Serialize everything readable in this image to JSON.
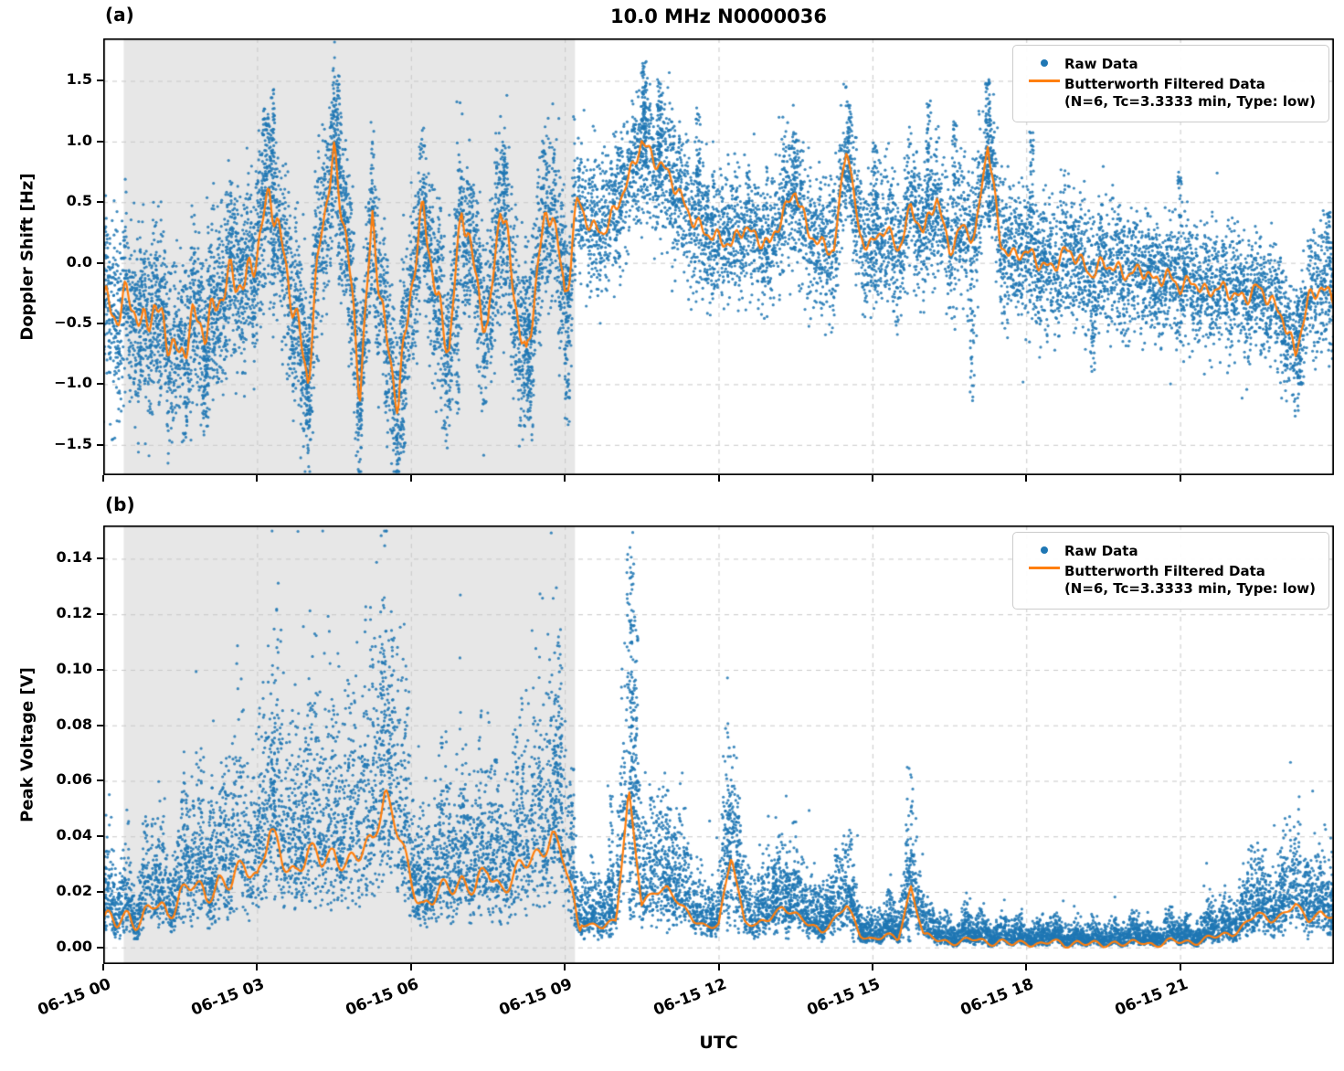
{
  "title": "10.0 MHz N0000036",
  "xlabel": "UTC",
  "panel_labels": {
    "a": "(a)",
    "b": "(b)"
  },
  "legend": {
    "raw_label": "Raw Data",
    "filtered_label_line1": "Butterworth Filtered Data",
    "filtered_label_line2": "(N=6, Tc=3.3333 min, Type: low)"
  },
  "colors": {
    "raw": "#1f77b4",
    "filtered": "#ff7f0e",
    "shaded_region": "#e7e7e7",
    "grid": "#c9c9c9",
    "frame": "#000000"
  },
  "chart_data": [
    {
      "type": "scatter",
      "panel": "a",
      "title": "10.0 MHz N0000036",
      "ylabel": "Doppler Shift [Hz]",
      "xlabel": "UTC",
      "x_unit": "hours since 06-15 00:00 UTC",
      "xlim_hours": [
        0,
        24
      ],
      "ylim": [
        -1.75,
        1.85
      ],
      "ytick_values": [
        -1.5,
        -1.0,
        -0.5,
        0.0,
        0.5,
        1.0,
        1.5
      ],
      "ytick_labels": [
        "−1.5",
        "−1.0",
        "−0.5",
        "0.0",
        "0.5",
        "1.0",
        "1.5"
      ],
      "xtick_hours": [
        0,
        3,
        6,
        9,
        12,
        15,
        18,
        21
      ],
      "xtick_labels": [
        "06-15 00",
        "06-15 03",
        "06-15 06",
        "06-15 09",
        "06-15 12",
        "06-15 15",
        "06-15 18",
        "06-15 21"
      ],
      "grid": "dashed",
      "legend_position": "upper right",
      "shaded_region_hours": [
        0.4,
        9.2
      ],
      "series": [
        {
          "name": "Raw Data",
          "type": "scatter",
          "color": "#1f77b4",
          "model": "symmetric",
          "n_points": 14000,
          "spread_shaded": 0.36,
          "spread_after": 0.27,
          "spread_tail": 0.24
        },
        {
          "name": "Butterworth Filtered Data (N=6, Tc=3.3333 min, Type: low)",
          "type": "line",
          "color": "#ff7f0e",
          "x_start": 0,
          "x_step": 0.25,
          "y": [
            -0.3,
            -0.45,
            -0.25,
            -0.55,
            -0.35,
            -0.6,
            -0.8,
            -0.45,
            -0.55,
            -0.3,
            -0.1,
            -0.2,
            0.1,
            0.6,
            0.1,
            -0.45,
            -0.95,
            0.3,
            0.85,
            0.2,
            -1.05,
            0.35,
            -0.6,
            -1.15,
            -0.2,
            0.45,
            -0.3,
            -0.7,
            0.5,
            -0.1,
            -0.6,
            0.55,
            -0.2,
            -0.85,
            0.1,
            0.5,
            -0.3,
            0.5,
            0.3,
            0.25,
            0.45,
            0.7,
            1.0,
            0.85,
            0.75,
            0.55,
            0.35,
            0.25,
            0.2,
            0.15,
            0.3,
            0.2,
            0.15,
            0.4,
            0.6,
            0.25,
            0.15,
            0.1,
            1.0,
            0.2,
            0.15,
            0.3,
            0.1,
            0.45,
            0.25,
            0.55,
            0.1,
            0.3,
            0.2,
            1.0,
            0.15,
            0.05,
            0.1,
            0.0,
            -0.05,
            0.1,
            0.05,
            -0.1,
            0.0,
            -0.05,
            -0.1,
            -0.05,
            -0.15,
            -0.1,
            -0.2,
            -0.15,
            -0.25,
            -0.2,
            -0.25,
            -0.3,
            -0.2,
            -0.3,
            -0.45,
            -0.75,
            -0.3,
            -0.2,
            -0.3
          ]
        }
      ],
      "spikes": [
        {
          "x": 3.3,
          "y0": 0.5,
          "y1": 1.45,
          "n": 50
        },
        {
          "x": 3.15,
          "y0": 0.4,
          "y1": 1.3,
          "n": 40
        },
        {
          "x": 4.6,
          "y0": 0.6,
          "y1": 1.56,
          "n": 50
        },
        {
          "x": 4.0,
          "y0": -1.45,
          "y1": -0.5,
          "n": 45
        },
        {
          "x": 2.0,
          "y0": -1.35,
          "y1": -0.6,
          "n": 35
        },
        {
          "x": 5.0,
          "y0": -1.5,
          "y1": -0.6,
          "n": 40
        },
        {
          "x": 5.85,
          "y0": -1.57,
          "y1": -0.6,
          "n": 45
        },
        {
          "x": 6.9,
          "y0": -1.25,
          "y1": -0.4,
          "n": 30
        },
        {
          "x": 7.8,
          "y0": 0.4,
          "y1": 1.0,
          "n": 30
        },
        {
          "x": 8.3,
          "y0": -1.3,
          "y1": -0.4,
          "n": 35
        },
        {
          "x": 9.05,
          "y0": -1.35,
          "y1": -0.4,
          "n": 35
        },
        {
          "x": 10.55,
          "y0": 0.8,
          "y1": 1.67,
          "n": 70
        },
        {
          "x": 10.85,
          "y0": 0.7,
          "y1": 1.5,
          "n": 50
        },
        {
          "x": 11.6,
          "y0": 0.6,
          "y1": 1.3,
          "n": 35
        },
        {
          "x": 13.5,
          "y0": 0.4,
          "y1": 1.1,
          "n": 30
        },
        {
          "x": 14.55,
          "y0": 0.5,
          "y1": 1.35,
          "n": 45
        },
        {
          "x": 15.05,
          "y0": 0.3,
          "y1": 1.0,
          "n": 30
        },
        {
          "x": 16.1,
          "y0": 0.3,
          "y1": 1.35,
          "n": 40
        },
        {
          "x": 16.6,
          "y0": 0.3,
          "y1": 1.2,
          "n": 35
        },
        {
          "x": 16.95,
          "y0": -1.15,
          "y1": -0.3,
          "n": 25
        },
        {
          "x": 17.25,
          "y0": 0.3,
          "y1": 1.55,
          "n": 80
        },
        {
          "x": 18.1,
          "y0": 0.2,
          "y1": 1.1,
          "n": 35
        },
        {
          "x": 19.3,
          "y0": -0.9,
          "y1": -0.2,
          "n": 25
        },
        {
          "x": 21.0,
          "y0": 0.2,
          "y1": 0.75,
          "n": 25
        },
        {
          "x": 23.3,
          "y0": -1.05,
          "y1": -0.3,
          "n": 35
        },
        {
          "x": 23.9,
          "y0": 0.0,
          "y1": 0.45,
          "n": 20
        }
      ]
    },
    {
      "type": "scatter",
      "panel": "b",
      "ylabel": "Peak Voltage [V]",
      "xlabel": "UTC",
      "x_unit": "hours since 06-15 00:00 UTC",
      "xlim_hours": [
        0,
        24
      ],
      "ylim": [
        -0.006,
        0.152
      ],
      "ytick_values": [
        0.0,
        0.02,
        0.04,
        0.06,
        0.08,
        0.1,
        0.12,
        0.14
      ],
      "ytick_labels": [
        "0.00",
        "0.02",
        "0.04",
        "0.06",
        "0.08",
        "0.10",
        "0.12",
        "0.14"
      ],
      "xtick_hours": [
        0,
        3,
        6,
        9,
        12,
        15,
        18,
        21
      ],
      "xtick_labels": [
        "06-15 00",
        "06-15 03",
        "06-15 06",
        "06-15 09",
        "06-15 12",
        "06-15 15",
        "06-15 18",
        "06-15 21"
      ],
      "grid": "dashed",
      "legend_position": "upper right",
      "shaded_region_hours": [
        0.4,
        9.2
      ],
      "series": [
        {
          "name": "Raw Data",
          "type": "scatter",
          "color": "#1f77b4",
          "model": "positive",
          "n_points": 12000
        },
        {
          "name": "Butterworth Filtered Data (N=6, Tc=3.3333 min, Type: low)",
          "type": "line",
          "color": "#ff7f0e",
          "x_start": 0,
          "x_step": 0.25,
          "y": [
            0.01,
            0.008,
            0.012,
            0.01,
            0.015,
            0.012,
            0.02,
            0.022,
            0.018,
            0.025,
            0.022,
            0.03,
            0.026,
            0.042,
            0.03,
            0.028,
            0.035,
            0.03,
            0.035,
            0.03,
            0.032,
            0.04,
            0.056,
            0.04,
            0.025,
            0.015,
            0.018,
            0.022,
            0.025,
            0.02,
            0.028,
            0.022,
            0.025,
            0.03,
            0.035,
            0.04,
            0.03,
            0.01,
            0.008,
            0.007,
            0.01,
            0.057,
            0.015,
            0.02,
            0.022,
            0.015,
            0.01,
            0.008,
            0.008,
            0.033,
            0.01,
            0.008,
            0.01,
            0.015,
            0.012,
            0.008,
            0.006,
            0.01,
            0.015,
            0.005,
            0.003,
            0.004,
            0.003,
            0.022,
            0.004,
            0.003,
            0.002,
            0.002,
            0.003,
            0.002,
            0.002,
            0.001,
            0.002,
            0.001,
            0.002,
            0.001,
            0.002,
            0.001,
            0.001,
            0.002,
            0.001,
            0.002,
            0.001,
            0.002,
            0.002,
            0.002,
            0.003,
            0.004,
            0.005,
            0.008,
            0.012,
            0.01,
            0.012,
            0.015,
            0.01,
            0.013,
            0.01
          ]
        }
      ],
      "spikes": [
        {
          "x": 10.3,
          "y0": 0.01,
          "y1": 0.145,
          "n": 90
        },
        {
          "x": 10.38,
          "y0": 0.01,
          "y1": 0.12,
          "n": 50
        },
        {
          "x": 9.9,
          "y0": 0.01,
          "y1": 0.055,
          "n": 30
        },
        {
          "x": 5.45,
          "y0": 0.03,
          "y1": 0.11,
          "n": 40
        },
        {
          "x": 5.6,
          "y0": 0.03,
          "y1": 0.095,
          "n": 35
        },
        {
          "x": 8.9,
          "y0": 0.03,
          "y1": 0.117,
          "n": 50
        },
        {
          "x": 8.8,
          "y0": 0.03,
          "y1": 0.09,
          "n": 40
        },
        {
          "x": 3.3,
          "y0": 0.03,
          "y1": 0.079,
          "n": 40
        },
        {
          "x": 2.1,
          "y0": 0.02,
          "y1": 0.062,
          "n": 25
        },
        {
          "x": 11.0,
          "y0": 0.005,
          "y1": 0.045,
          "n": 30
        },
        {
          "x": 11.15,
          "y0": 0.005,
          "y1": 0.042,
          "n": 25
        },
        {
          "x": 12.2,
          "y0": 0.005,
          "y1": 0.06,
          "n": 40
        },
        {
          "x": 12.35,
          "y0": 0.005,
          "y1": 0.057,
          "n": 35
        },
        {
          "x": 13.1,
          "y0": 0.003,
          "y1": 0.027,
          "n": 25
        },
        {
          "x": 13.35,
          "y0": 0.003,
          "y1": 0.028,
          "n": 25
        },
        {
          "x": 14.0,
          "y0": 0.002,
          "y1": 0.024,
          "n": 20
        },
        {
          "x": 14.6,
          "y0": 0.002,
          "y1": 0.022,
          "n": 20
        },
        {
          "x": 15.7,
          "y0": 0.002,
          "y1": 0.033,
          "n": 30
        },
        {
          "x": 16.5,
          "y0": 0.001,
          "y1": 0.012,
          "n": 15
        },
        {
          "x": 23.0,
          "y0": 0.003,
          "y1": 0.03,
          "n": 25
        },
        {
          "x": 23.5,
          "y0": 0.003,
          "y1": 0.032,
          "n": 25
        }
      ]
    }
  ]
}
